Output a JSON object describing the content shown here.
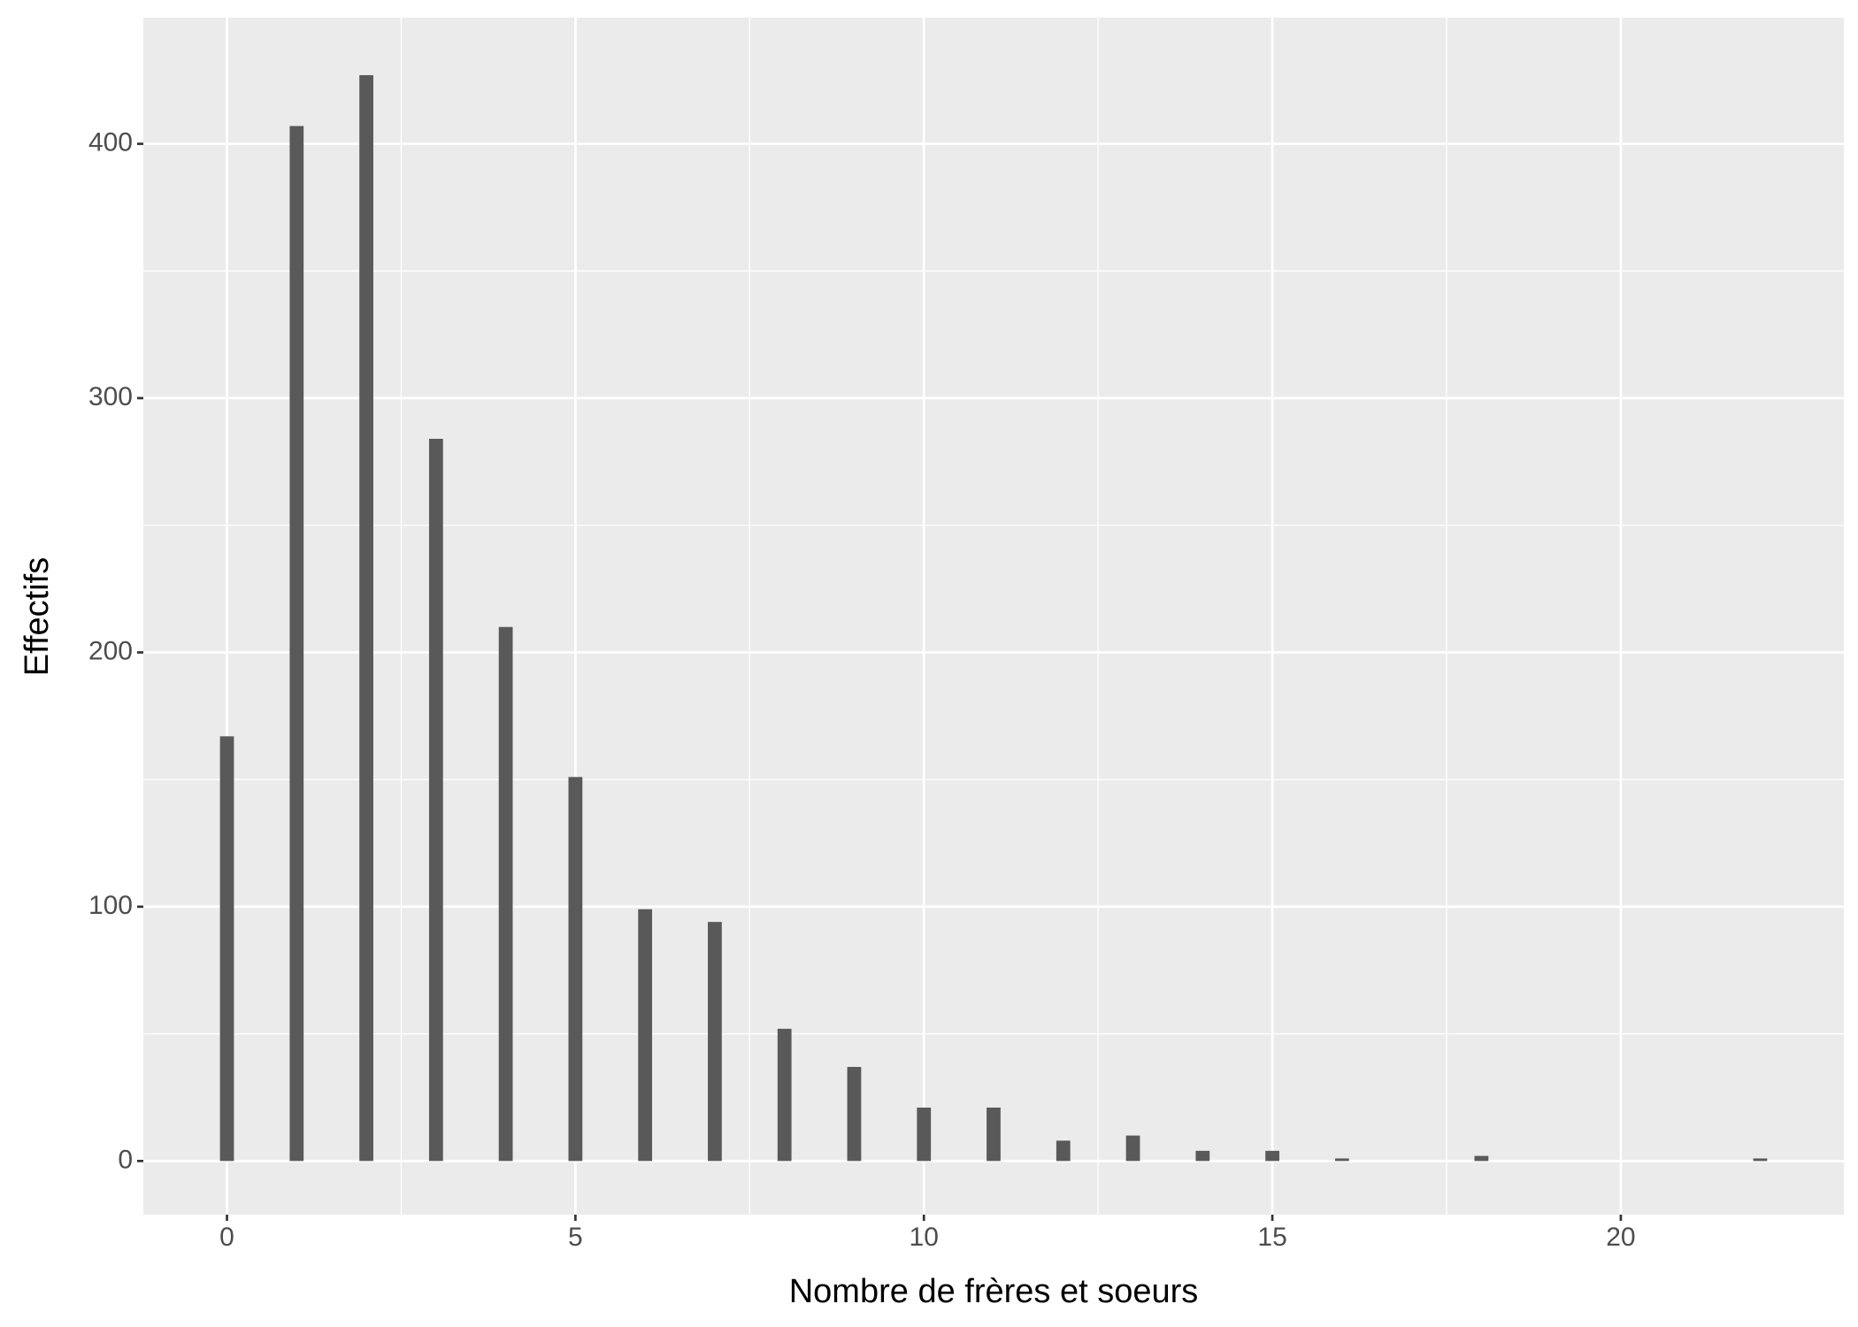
{
  "chart_data": {
    "type": "bar",
    "x_label": "Nombre de frères et soeurs",
    "y_label": "Effectifs",
    "x": [
      0,
      1,
      2,
      3,
      4,
      5,
      6,
      7,
      8,
      9,
      10,
      11,
      12,
      13,
      14,
      15,
      16,
      18,
      22
    ],
    "values": [
      167,
      407,
      427,
      284,
      210,
      151,
      99,
      94,
      52,
      37,
      21,
      21,
      8,
      10,
      4,
      4,
      1,
      2,
      1
    ],
    "color": "#595959",
    "xlim": [
      -1.2,
      23.2
    ],
    "xticks": [
      0,
      5,
      10,
      15,
      20
    ],
    "ylim": [
      -21.1,
      449.6
    ],
    "yticks": [
      0,
      100,
      200,
      300,
      400
    ],
    "grid": true
  }
}
